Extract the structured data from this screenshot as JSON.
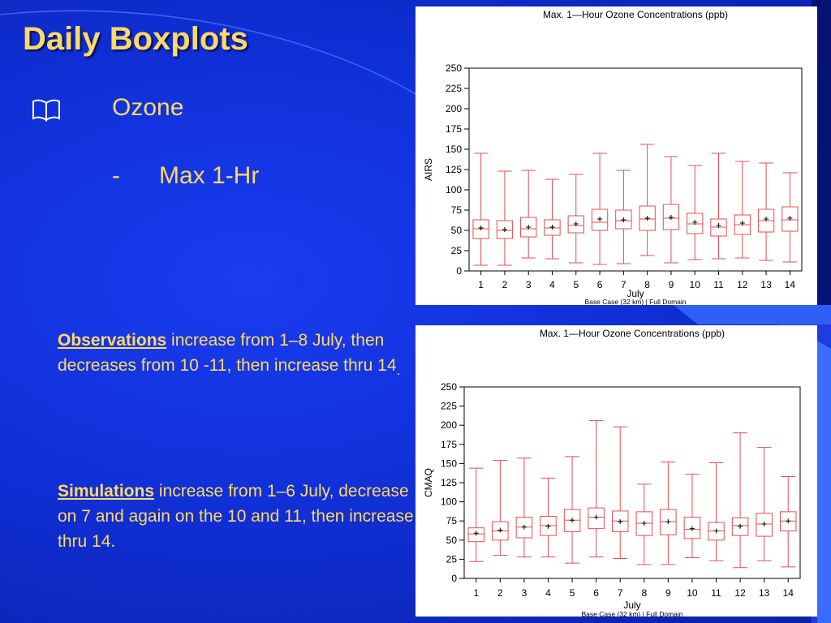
{
  "slide": {
    "title": "Daily Boxplots",
    "bullet_main": "Ozone",
    "bullet_dash": "-",
    "bullet_sub": "Max 1-Hr",
    "obs_head": "Observations",
    "obs_text": " increase from 1–8 July, then decreases from 10 -11, then increase thru 14",
    "obs_tail": ".",
    "sim_head": "Simulations",
    "sim_text": " increase from 1–6 July, decrease on 7  and again on the 10 and 11, then increase thru 14.",
    "colors": {
      "background": "#1030d8",
      "text": "#ffd966",
      "box": "#e05050"
    }
  },
  "chart_data": [
    {
      "type": "boxplot",
      "title": "Max. 1—Hour Ozone Concentrations (ppb)",
      "xlabel": "July",
      "ylabel": "AIRS",
      "footnote": "Base Case (32 km) | Full Domain",
      "ylim": [
        0,
        250
      ],
      "yticks": [
        0,
        25,
        50,
        75,
        100,
        125,
        150,
        175,
        200,
        225,
        250
      ],
      "categories": [
        "1",
        "2",
        "3",
        "4",
        "5",
        "6",
        "7",
        "8",
        "9",
        "10",
        "11",
        "12",
        "13",
        "14"
      ],
      "min": [
        7,
        7,
        16,
        15,
        10,
        8,
        9,
        19,
        10,
        14,
        15,
        16,
        13,
        11
      ],
      "q1": [
        40,
        40,
        42,
        44,
        47,
        50,
        52,
        50,
        51,
        46,
        43,
        45,
        48,
        49
      ],
      "median": [
        52,
        50,
        52,
        53,
        56,
        60,
        62,
        64,
        65,
        58,
        54,
        57,
        62,
        63
      ],
      "q3": [
        63,
        62,
        66,
        63,
        68,
        76,
        75,
        80,
        82,
        71,
        64,
        69,
        76,
        79
      ],
      "max": [
        145,
        123,
        124,
        113,
        119,
        145,
        124,
        156,
        141,
        130,
        145,
        135,
        133,
        121
      ],
      "mean": [
        53,
        51,
        54,
        54,
        58,
        64,
        63,
        65,
        66,
        60,
        56,
        59,
        64,
        65
      ]
    },
    {
      "type": "boxplot",
      "title": "Max. 1—Hour Ozone Concentrations (ppb)",
      "xlabel": "July",
      "ylabel": "CMAQ",
      "footnote": "Base Case (32 km) | Full Domain",
      "ylim": [
        0,
        250
      ],
      "yticks": [
        0,
        25,
        50,
        75,
        100,
        125,
        150,
        175,
        200,
        225,
        250
      ],
      "categories": [
        "1",
        "2",
        "3",
        "4",
        "5",
        "6",
        "7",
        "8",
        "9",
        "10",
        "11",
        "12",
        "13",
        "14"
      ],
      "min": [
        22,
        30,
        28,
        28,
        20,
        28,
        26,
        18,
        18,
        27,
        23,
        14,
        23,
        15
      ],
      "q1": [
        48,
        50,
        53,
        56,
        61,
        65,
        61,
        56,
        57,
        52,
        50,
        56,
        55,
        62
      ],
      "median": [
        58,
        62,
        67,
        69,
        76,
        80,
        75,
        72,
        74,
        64,
        62,
        69,
        71,
        75
      ],
      "q3": [
        66,
        74,
        80,
        81,
        90,
        92,
        88,
        87,
        90,
        80,
        73,
        79,
        85,
        87
      ],
      "max": [
        144,
        154,
        157,
        131,
        159,
        206,
        198,
        123,
        152,
        136,
        151,
        190,
        171,
        133
      ],
      "mean": [
        59,
        63,
        67,
        68,
        76,
        80,
        74,
        72,
        74,
        65,
        62,
        68,
        71,
        75
      ]
    }
  ]
}
